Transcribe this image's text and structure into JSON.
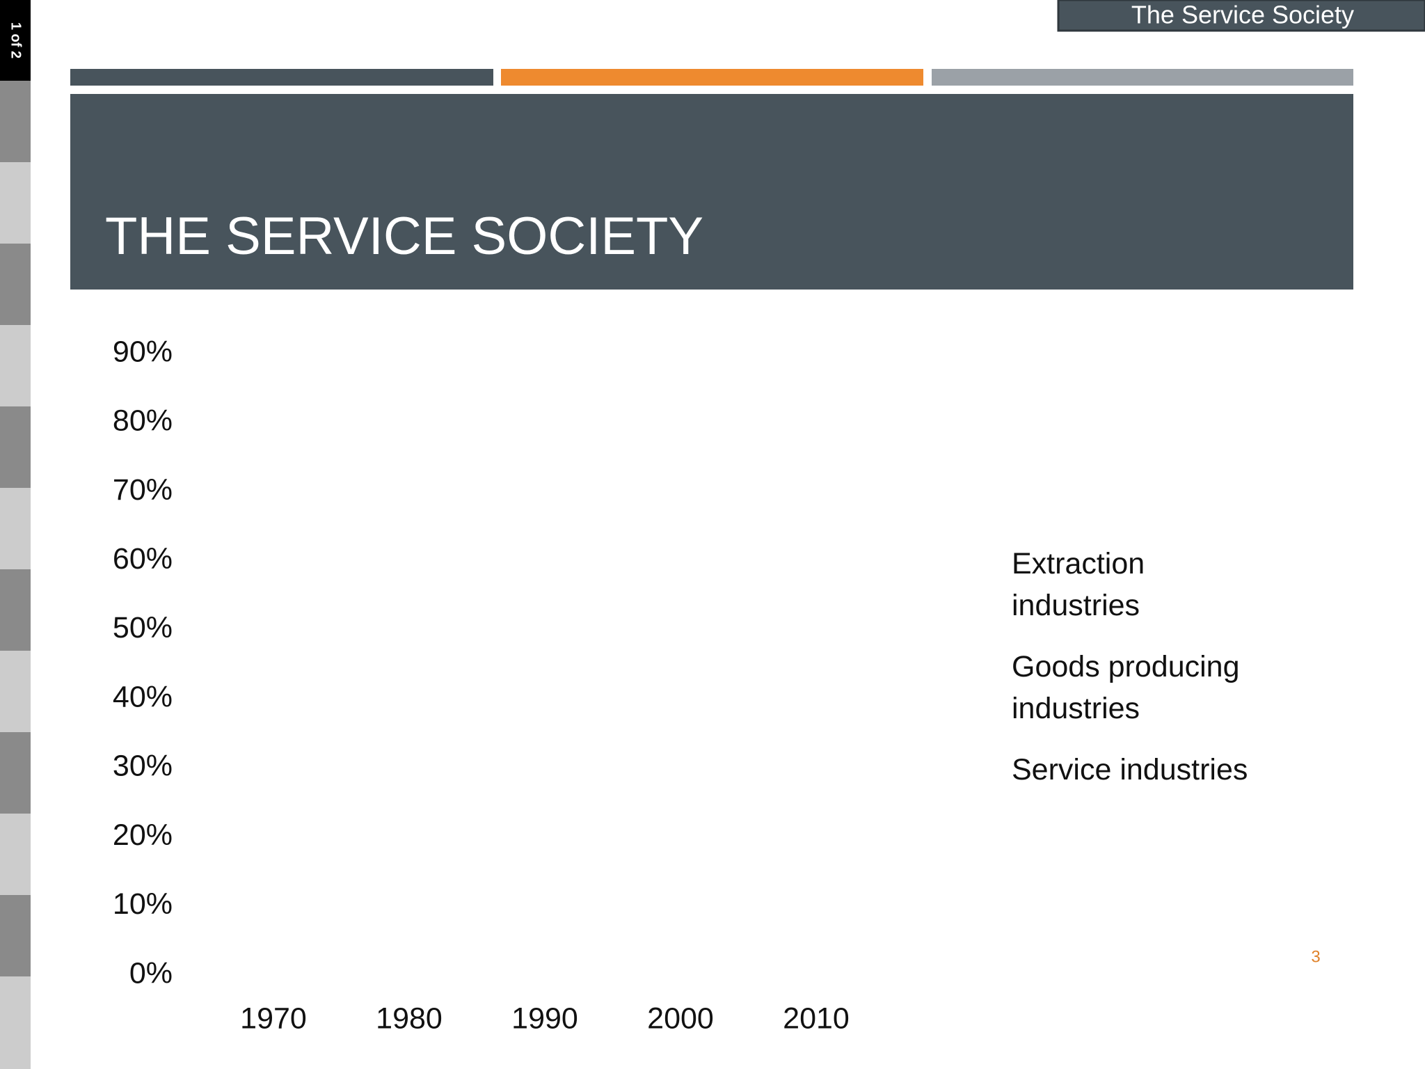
{
  "sidebar": {
    "label": "1 of 2"
  },
  "header": {
    "tab": "The Service Society",
    "title": "THE SERVICE SOCIETY"
  },
  "chart_data": {
    "type": "line",
    "categories": [
      "1970",
      "1980",
      "1990",
      "2000",
      "2010"
    ],
    "ylim": [
      0,
      90
    ],
    "yticks": [
      {
        "value": 0,
        "label": "0%"
      },
      {
        "value": 10,
        "label": "10%"
      },
      {
        "value": 20,
        "label": "20%"
      },
      {
        "value": 30,
        "label": "30%"
      },
      {
        "value": 40,
        "label": "40%"
      },
      {
        "value": 50,
        "label": "50%"
      },
      {
        "value": 60,
        "label": "60%"
      },
      {
        "value": 70,
        "label": "70%"
      },
      {
        "value": 80,
        "label": "80%"
      },
      {
        "value": 90,
        "label": "90%"
      }
    ],
    "series": [
      {
        "name": "Extraction industries"
      },
      {
        "name": "Goods producing industries"
      },
      {
        "name": "Service industries"
      }
    ]
  },
  "footer": {
    "slide_number": "3"
  }
}
